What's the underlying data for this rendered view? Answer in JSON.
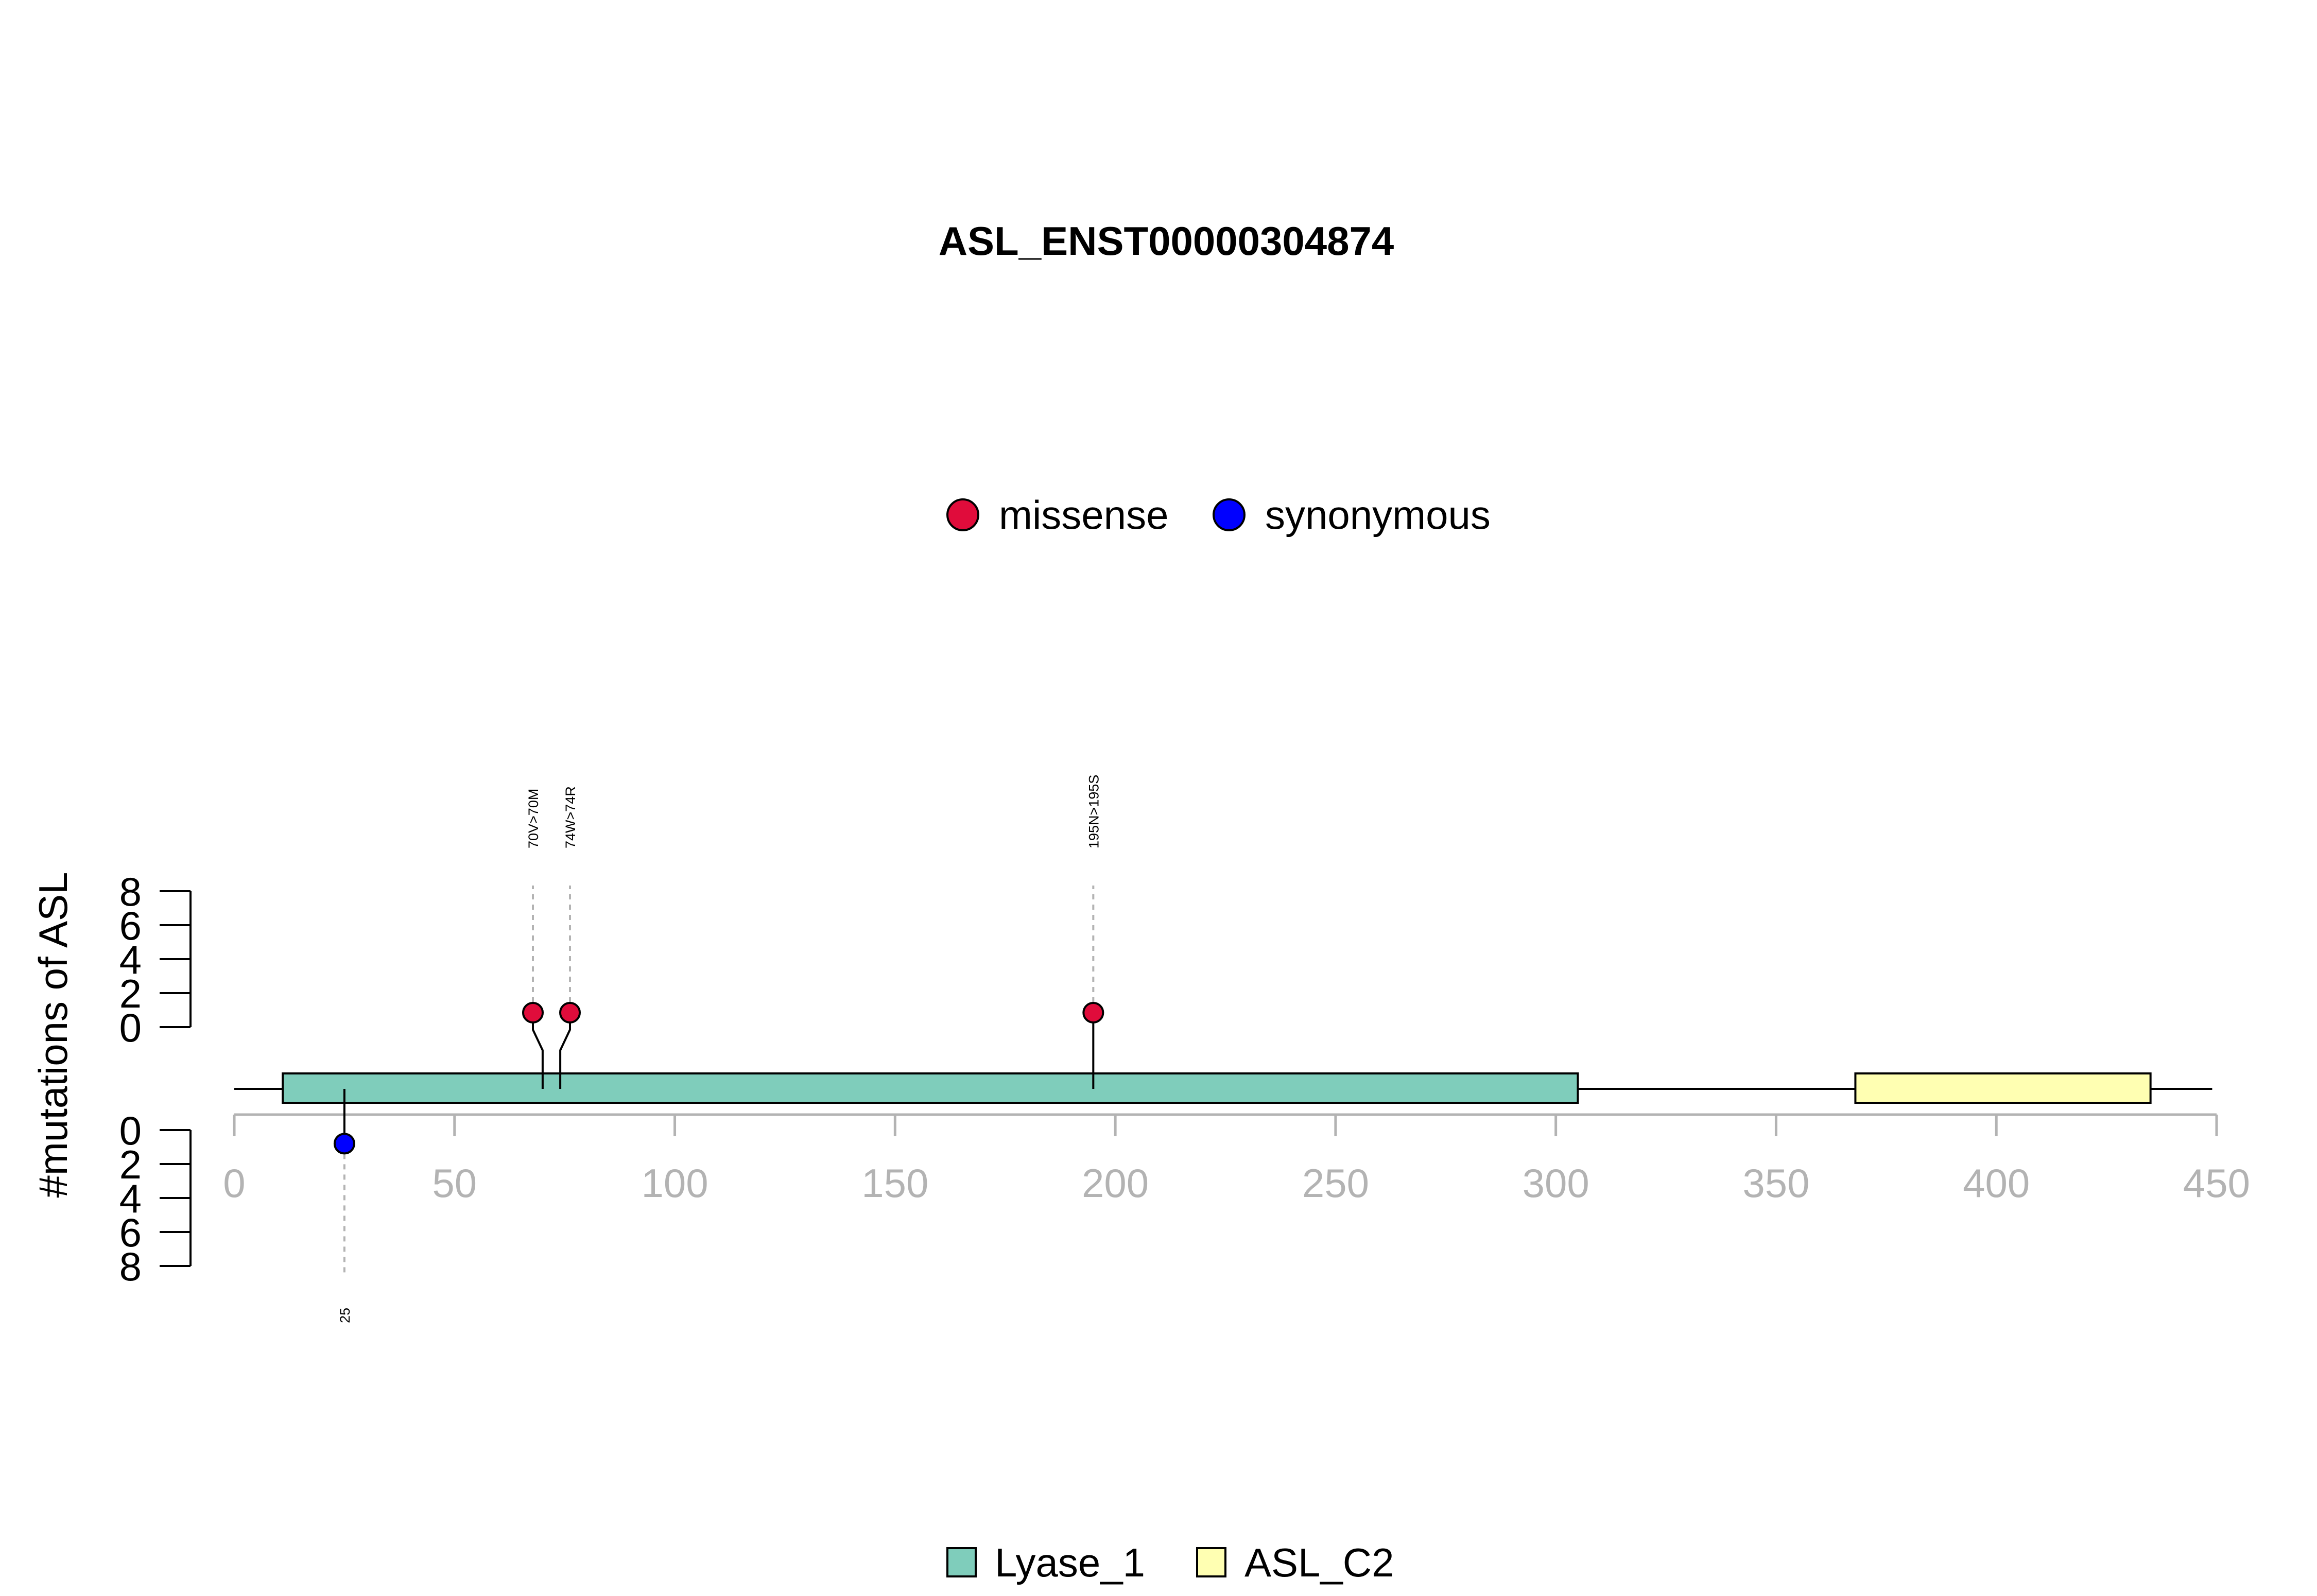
{
  "chart_data": {
    "type": "lollipop",
    "title": "ASL_ENST00000304874",
    "ylabel": "#mutations of ASL",
    "xlim": [
      0,
      450
    ],
    "x_ticks": [
      0,
      50,
      100,
      150,
      200,
      250,
      300,
      350,
      400,
      450
    ],
    "y_ticks_upper": [
      0,
      2,
      4,
      6,
      8
    ],
    "y_ticks_lower": [
      0,
      2,
      4,
      6,
      8
    ],
    "protein_length": 449,
    "mutation_legend": [
      {
        "name": "missense",
        "color": "#e00c3b"
      },
      {
        "name": "synonymous",
        "color": "#0000ff"
      }
    ],
    "domain_legend": [
      {
        "name": "Lyase_1",
        "color": "#7fcdbb"
      },
      {
        "name": "ASL_C2",
        "color": "#ffffb2"
      }
    ],
    "domains": [
      {
        "name": "Lyase_1",
        "start": 11,
        "end": 305,
        "color": "#7fcdbb"
      },
      {
        "name": "ASL_C2",
        "start": 368,
        "end": 435,
        "color": "#ffffb2"
      }
    ],
    "mutations_upper": [
      {
        "label": "70V>70M",
        "position": 70,
        "count": 1,
        "type": "missense",
        "color": "#e00c3b"
      },
      {
        "label": "74W>74R",
        "position": 74,
        "count": 1,
        "type": "missense",
        "color": "#e00c3b"
      },
      {
        "label": "195N>195S",
        "position": 195,
        "count": 1,
        "type": "missense",
        "color": "#e00c3b"
      }
    ],
    "mutations_lower": [
      {
        "label": "25",
        "position": 25,
        "count": 1,
        "type": "synonymous",
        "color": "#0000ff"
      }
    ],
    "grid": false,
    "legend_placement": [
      "top-center",
      "bottom-center"
    ]
  }
}
